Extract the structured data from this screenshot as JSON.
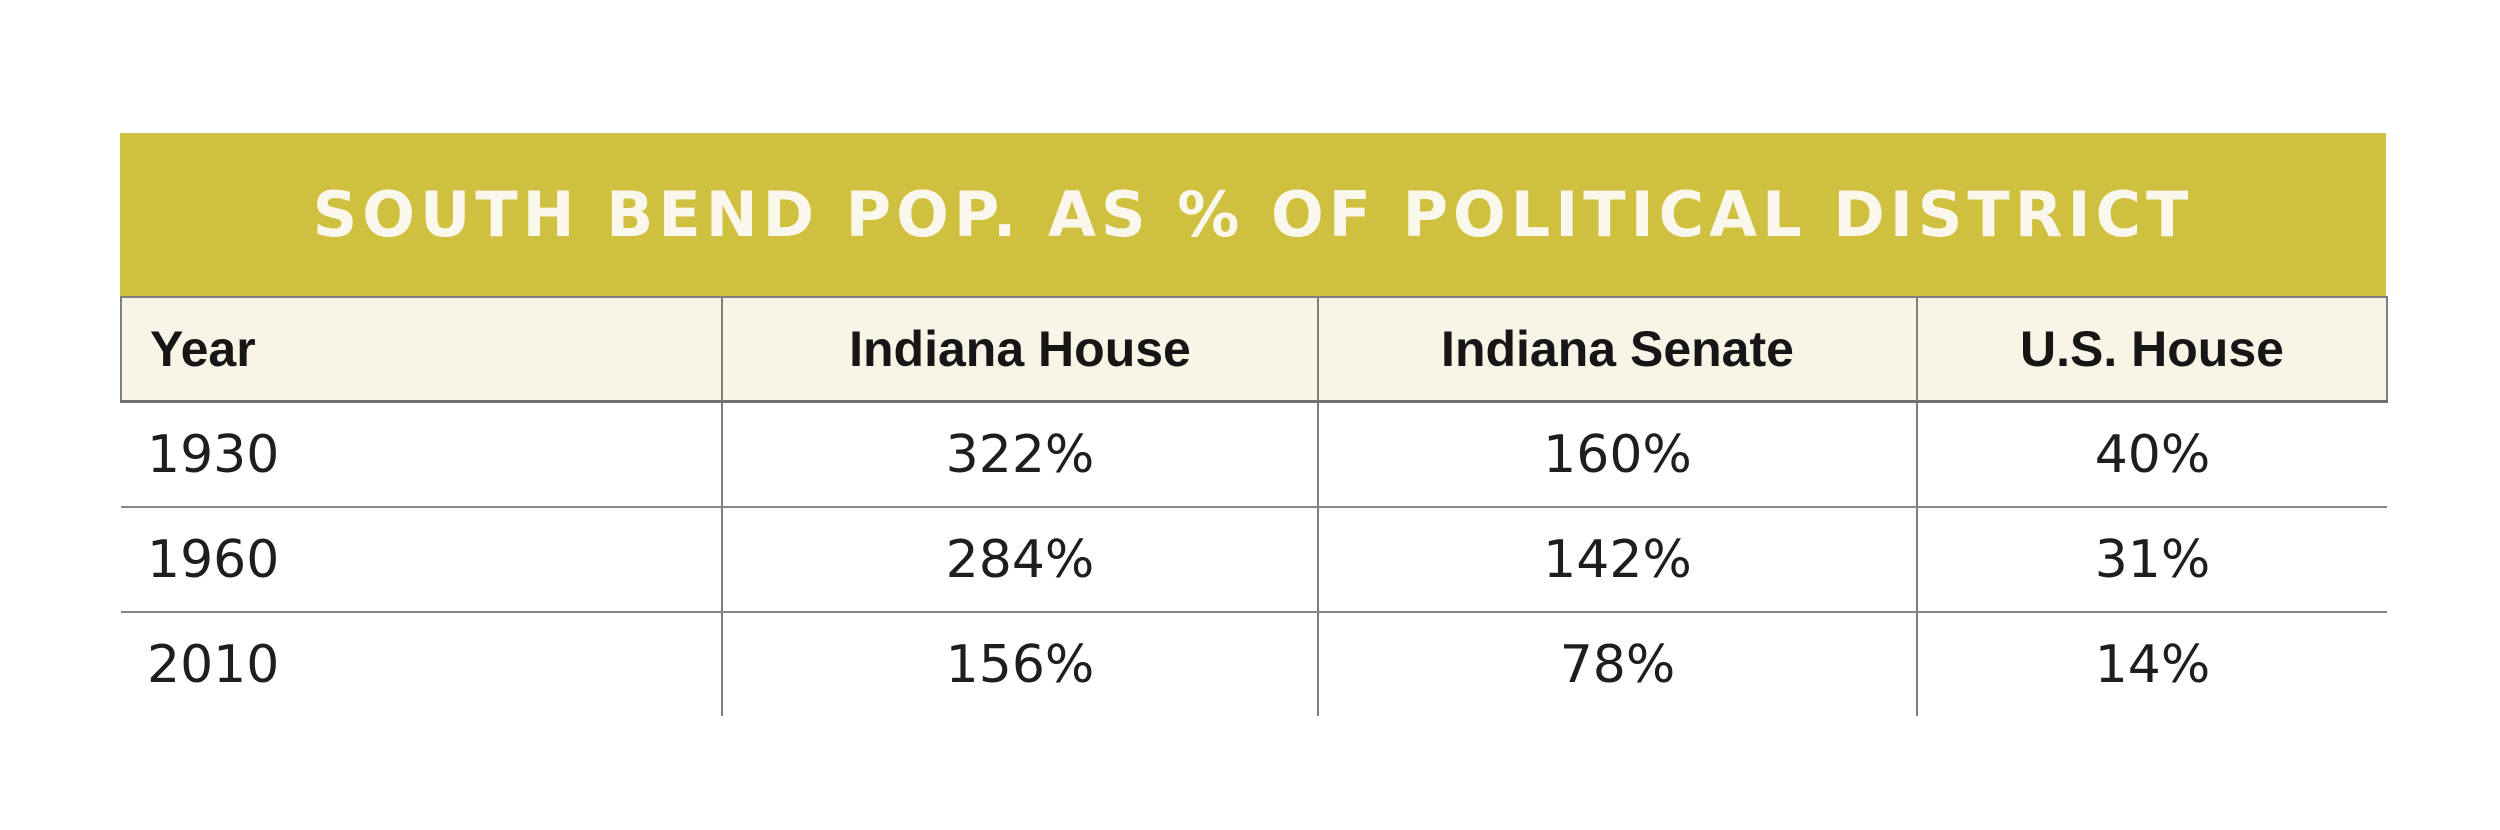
{
  "chart_data": {
    "type": "table",
    "title": "SOUTH BEND POP. AS % OF POLITICAL DISTRICT",
    "columns": [
      "Year",
      "Indiana House",
      "Indiana Senate",
      "U.S. House"
    ],
    "rows": [
      [
        "1930",
        "322%",
        "160%",
        "40%"
      ],
      [
        "1960",
        "284%",
        "142%",
        "31%"
      ],
      [
        "2010",
        "156%",
        "78%",
        "14%"
      ]
    ],
    "layout": {
      "header_style": "cream band with gray rules",
      "title_style": "mustard banner, centered white caps",
      "grid": "horizontal rules between rows; vertical rules between columns extend below last row; no bottom rule"
    }
  },
  "colors": {
    "band_yellow": "#cfc040",
    "header_cream": "#f8f5e6",
    "grid_gray": "#7e7e7e",
    "title_text": "#faf8ec",
    "body_text": "#1e1e1e",
    "page_background": "#ffffff"
  }
}
